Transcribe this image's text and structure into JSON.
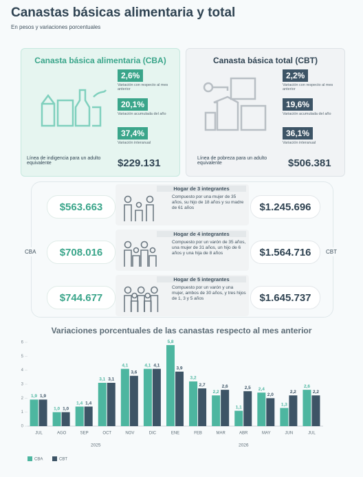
{
  "header": {
    "title": "Canastas básicas alimentaria y total",
    "subtitle": "En pesos y variaciones porcentuales"
  },
  "cba": {
    "title": "Canasta básica alimentaria (CBA)",
    "stats": [
      {
        "value": "2,6%",
        "label": "Variación con respecto al mes anterior"
      },
      {
        "value": "20,1%",
        "label": "Variación acumulada del año"
      },
      {
        "value": "37,4%",
        "label": "Variación interanual"
      }
    ],
    "line_label": "Línea de indigencia para un adulto equivalente",
    "line_value": "$229.131"
  },
  "cbt": {
    "title": "Canasta básica total (CBT)",
    "stats": [
      {
        "value": "2,2%",
        "label": "Variación con respecto al mes anterior"
      },
      {
        "value": "19,6%",
        "label": "Variación acumulada del año"
      },
      {
        "value": "36,1%",
        "label": "Variación interanual"
      }
    ],
    "line_label": "Línea de pobreza para un adulto equivalente",
    "line_value": "$506.381"
  },
  "households": {
    "left_label": "CBA",
    "right_label": "CBT",
    "rows": [
      {
        "title": "Hogar de 3 integrantes",
        "description": "Compuesto por una mujer de 35 años, su hijo de 18 años y su madre de 61 años",
        "cba": "$563.663",
        "cbt": "$1.245.696"
      },
      {
        "title": "Hogar de 4 integrantes",
        "description": "Compuesto por un varón de 35 años, una mujer de 31 años, un hijo de 6 años y una hija de 8 años",
        "cba": "$708.016",
        "cbt": "$1.564.716"
      },
      {
        "title": "Hogar de 5 integrantes",
        "description": "Compuesto por un varón y una mujer, ambos de 30 años, y tres hijos de 1, 3 y 5 años",
        "cba": "$744.677",
        "cbt": "$1.645.737"
      }
    ]
  },
  "chart_data": {
    "type": "bar",
    "title": "Variaciones porcentuales de las canastas respecto al mes anterior",
    "categories": [
      "JUL",
      "AGO",
      "SEP",
      "OCT",
      "NOV",
      "DIC",
      "ENE",
      "FEB",
      "MAR",
      "ABR",
      "MAY",
      "JUN",
      "JUL"
    ],
    "x_groups": [
      {
        "label": "2025",
        "categories": 6
      },
      {
        "label": "2026",
        "categories": 7
      }
    ],
    "series": [
      {
        "name": "CBA",
        "color": "#4db6a0",
        "values": [
          1.9,
          1.0,
          1.4,
          3.1,
          4.1,
          4.1,
          5.8,
          3.2,
          2.2,
          1.1,
          2.4,
          1.3,
          2.6
        ],
        "value_labels": [
          "1,9",
          "1,0",
          "1,4",
          "3,1",
          "4,1",
          "4,1",
          "5,8",
          "3,2",
          "2,2",
          "1,1",
          "2,4",
          "1,3",
          "2,6"
        ]
      },
      {
        "name": "CBT",
        "color": "#3d5466",
        "values": [
          1.9,
          1.0,
          1.4,
          3.1,
          3.6,
          4.1,
          3.9,
          2.7,
          2.6,
          2.5,
          2.0,
          2.2,
          2.2
        ],
        "value_labels": [
          "1,9",
          "1,0",
          "1,4",
          "3,1",
          "3,6",
          "4,1",
          "3,9",
          "2,7",
          "2,6",
          "2,5",
          "2,0",
          "2,2",
          "2,2"
        ]
      }
    ],
    "ylim": [
      0,
      6
    ],
    "yticks": [
      0,
      1,
      2,
      3,
      4,
      5,
      6
    ],
    "grid": false,
    "legend": "bottom-left"
  }
}
